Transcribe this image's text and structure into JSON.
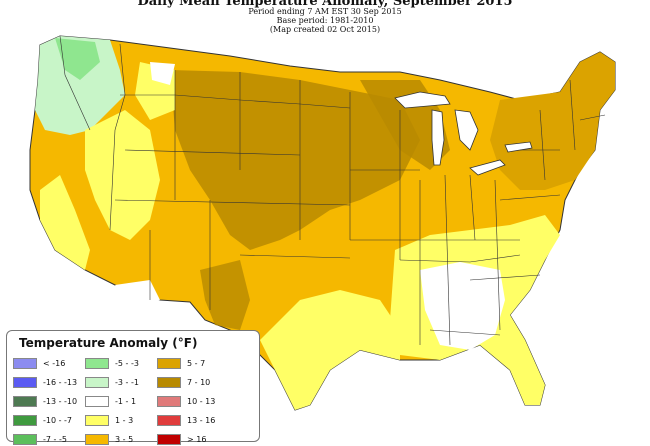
{
  "header": {
    "title": "Daily Mean Temperature Anomaly, September 2015",
    "line1": "Period ending 7 AM EST 30 Sep 2015",
    "line2": "Base period: 1981-2010",
    "line3": "(Map created 02 Oct 2015)"
  },
  "legend": {
    "title": "Temperature Anomaly (°F)",
    "items": [
      {
        "label": "< -16",
        "color": "#8c8cf0"
      },
      {
        "label": "-16 - -13",
        "color": "#5b5bf2"
      },
      {
        "label": "-13 - -10",
        "color": "#4e7a52"
      },
      {
        "label": "-10 - -7",
        "color": "#3f9a3f"
      },
      {
        "label": "-7 - -5",
        "color": "#5cbf5c"
      },
      {
        "label": "-5 - -3",
        "color": "#8fe68f"
      },
      {
        "label": "-3 - -1",
        "color": "#c8f5c8"
      },
      {
        "label": "-1 - 1",
        "color": "#ffffff"
      },
      {
        "label": "1 - 3",
        "color": "#ffff66"
      },
      {
        "label": "3 - 5",
        "color": "#f5b800"
      },
      {
        "label": "5 - 7",
        "color": "#dba300"
      },
      {
        "label": "7 - 10",
        "color": "#b88a00"
      },
      {
        "label": "10 - 13",
        "color": "#e07a7a"
      },
      {
        "label": "13 - 16",
        "color": "#e03c3c"
      },
      {
        "label": "> 16",
        "color": "#c00000"
      }
    ]
  },
  "map_colors": {
    "cool": "#c8f5c8",
    "neutral": "#ffffff",
    "mild": "#ffff66",
    "warm": "#f5b800",
    "warmer": "#dba300",
    "hottest": "#b88a00",
    "border": "#333333"
  }
}
